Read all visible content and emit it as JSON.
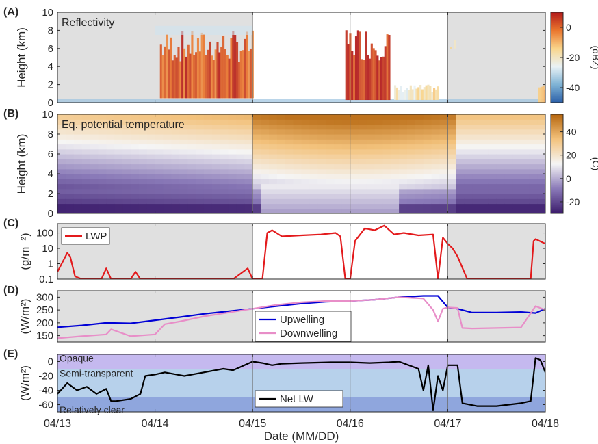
{
  "figure": {
    "xlabel": "Date (MM/DD)",
    "x_ticks": [
      "04/13",
      "04/14",
      "04/15",
      "04/16",
      "04/17",
      "04/18"
    ],
    "shading": {
      "color": "#e0e0e0",
      "note_periods": [
        [
          0,
          2
        ],
        [
          4,
          5
        ]
      ]
    }
  },
  "chart_data": [
    {
      "panel": "(A)",
      "type": "heatmap",
      "title": "Reflectivity",
      "ylabel": "Height (km)",
      "xlim": [
        0,
        5
      ],
      "ylim": [
        0,
        10
      ],
      "y_ticks": [
        "0",
        "2",
        "4",
        "6",
        "8",
        "10"
      ],
      "colorbar": {
        "label": "(dBZ)",
        "range": [
          -50,
          10
        ],
        "ticks": [
          "0",
          "-20",
          "-40"
        ],
        "tick_values": [
          0,
          -20,
          -40
        ],
        "colors": [
          "#2b5fa8",
          "#7fb3d5",
          "#eaf2f5",
          "#f9d58b",
          "#e9752d",
          "#b31b1b"
        ]
      },
      "echoes": [
        {
          "x": [
            1.05,
            2.0
          ],
          "top": 8,
          "bottom": 0.5,
          "intensity": "high"
        },
        {
          "x": [
            2.95,
            3.4
          ],
          "top": 8.5,
          "bottom": 0.3,
          "intensity": "very high"
        },
        {
          "x": [
            3.45,
            3.9
          ],
          "top": 2,
          "bottom": 0.3,
          "intensity": "weak"
        },
        {
          "x": [
            4.0,
            4.2
          ],
          "top": 7,
          "bottom": 6,
          "intensity": "weak"
        },
        {
          "x": [
            4.93,
            5.0
          ],
          "top": 2,
          "bottom": 0,
          "intensity": "moderate"
        }
      ]
    },
    {
      "panel": "(B)",
      "type": "heatmap",
      "title": "Eq. potential temperature",
      "ylabel": "Height (km)",
      "xlim": [
        0,
        5
      ],
      "ylim": [
        0,
        10
      ],
      "y_ticks": [
        "0",
        "2",
        "4",
        "6",
        "8",
        "10"
      ],
      "colorbar": {
        "label": "(C)",
        "range": [
          -30,
          55
        ],
        "ticks": [
          "40",
          "20",
          "0",
          "-20"
        ],
        "tick_values": [
          40,
          20,
          0,
          -20
        ],
        "colors": [
          "#3b1b6b",
          "#8a7ab8",
          "#f5f5f5",
          "#f3c27c",
          "#b5650d"
        ]
      }
    },
    {
      "panel": "(C)",
      "type": "line",
      "ylabel": "(g/m⁻²)",
      "yscale": "log",
      "ylim": [
        0.1,
        400
      ],
      "y_ticks": [
        "0.1",
        "1",
        "10",
        "100"
      ],
      "series": [
        {
          "name": "LWP",
          "color": "#e31a1c",
          "x": [
            0,
            0.1,
            0.13,
            0.18,
            0.25,
            0.35,
            0.45,
            0.5,
            0.55,
            0.65,
            0.75,
            0.8,
            0.85,
            0.95,
            1.05,
            1.15,
            1.25,
            1.35,
            1.5,
            1.65,
            1.8,
            1.95,
            2.0,
            2.1,
            2.15,
            2.2,
            2.3,
            2.5,
            2.7,
            2.85,
            2.9,
            2.95,
            3.0,
            3.05,
            3.15,
            3.25,
            3.35,
            3.45,
            3.55,
            3.7,
            3.85,
            3.88,
            3.9,
            3.95,
            4.0,
            4.05,
            4.1,
            4.2,
            4.3,
            4.5,
            4.7,
            4.85,
            4.88,
            4.9,
            5.0
          ],
          "y": [
            0.3,
            5,
            3,
            0.15,
            0.1,
            0.1,
            0.1,
            0.5,
            0.1,
            0.1,
            0.1,
            0.3,
            0.1,
            0.1,
            0.1,
            0.1,
            0.1,
            0.1,
            0.1,
            0.1,
            0.1,
            0.5,
            0.1,
            0.1,
            100,
            150,
            60,
            70,
            80,
            100,
            60,
            0.1,
            0.1,
            30,
            200,
            150,
            300,
            80,
            100,
            70,
            80,
            1.5,
            0.1,
            50,
            20,
            10,
            3,
            0.1,
            0.1,
            0.1,
            0.1,
            0.1,
            30,
            40,
            20
          ]
        }
      ]
    },
    {
      "panel": "(D)",
      "type": "line",
      "ylabel": "(W/m²)",
      "ylim": [
        125,
        325
      ],
      "y_ticks": [
        "150",
        "200",
        "250",
        "300"
      ],
      "series": [
        {
          "name": "Upwelling",
          "color": "#0000d6",
          "x": [
            0,
            0.25,
            0.5,
            0.75,
            1.0,
            1.25,
            1.5,
            1.75,
            2.0,
            2.25,
            2.5,
            2.75,
            3.0,
            3.25,
            3.5,
            3.75,
            3.9,
            4.0,
            4.1,
            4.25,
            4.5,
            4.75,
            4.9,
            5.0
          ],
          "y": [
            183,
            190,
            200,
            198,
            210,
            222,
            235,
            245,
            255,
            265,
            275,
            282,
            285,
            290,
            300,
            305,
            305,
            260,
            255,
            240,
            240,
            242,
            238,
            255
          ]
        },
        {
          "name": "Downwelling",
          "color": "#e88ec8",
          "x": [
            0,
            0.25,
            0.5,
            0.55,
            0.75,
            1.0,
            1.1,
            1.25,
            1.5,
            1.75,
            2.0,
            2.25,
            2.5,
            2.75,
            3.0,
            3.25,
            3.5,
            3.75,
            3.85,
            3.9,
            3.95,
            4.0,
            4.1,
            4.15,
            4.25,
            4.5,
            4.75,
            4.9,
            5.0
          ],
          "y": [
            140,
            148,
            155,
            175,
            148,
            155,
            195,
            205,
            225,
            240,
            255,
            270,
            280,
            285,
            285,
            290,
            300,
            295,
            250,
            205,
            255,
            260,
            258,
            180,
            178,
            180,
            182,
            265,
            250
          ]
        }
      ]
    },
    {
      "panel": "(E)",
      "type": "line",
      "ylabel": "(W/m²)",
      "ylim": [
        -70,
        10
      ],
      "y_ticks": [
        "-60",
        "-40",
        "-20",
        "0"
      ],
      "bands": [
        {
          "label": "Opaque",
          "range": [
            -10,
            10
          ],
          "color": "#c5b9ef"
        },
        {
          "label": "Semi-transparent",
          "range": [
            -50,
            -10
          ],
          "color": "#b7d1eb"
        },
        {
          "label": "Relatively clear",
          "range": [
            -70,
            -50
          ],
          "color": "#8fa6dd"
        }
      ],
      "series": [
        {
          "name": "Net LW",
          "color": "#000000",
          "x": [
            0,
            0.1,
            0.2,
            0.3,
            0.4,
            0.5,
            0.55,
            0.6,
            0.75,
            0.85,
            0.9,
            1.0,
            1.1,
            1.3,
            1.5,
            1.7,
            1.8,
            2.0,
            2.1,
            2.2,
            2.3,
            2.5,
            2.8,
            3.0,
            3.2,
            3.4,
            3.5,
            3.6,
            3.7,
            3.75,
            3.8,
            3.85,
            3.9,
            3.95,
            4.0,
            4.1,
            4.15,
            4.3,
            4.5,
            4.75,
            4.85,
            4.9,
            4.95,
            5.0
          ],
          "y": [
            -45,
            -30,
            -40,
            -35,
            -45,
            -38,
            -55,
            -55,
            -52,
            -45,
            -20,
            -18,
            -15,
            -20,
            -15,
            -10,
            -12,
            0,
            -2,
            -5,
            -3,
            -2,
            -1,
            -1,
            -2,
            -1,
            0,
            -5,
            -10,
            -40,
            -5,
            -68,
            -20,
            -40,
            -5,
            -5,
            -58,
            -62,
            -62,
            -58,
            -55,
            5,
            2,
            -15
          ]
        }
      ]
    }
  ]
}
